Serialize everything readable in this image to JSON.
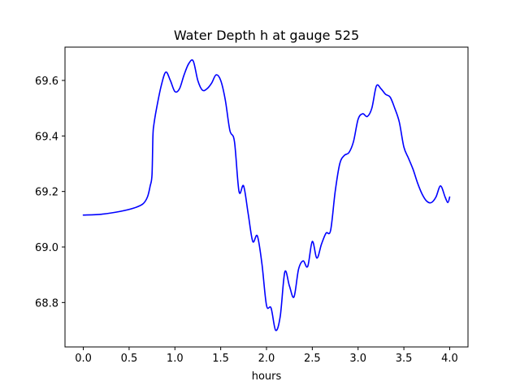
{
  "chart_data": {
    "type": "line",
    "title": "Water Depth h at gauge 525",
    "xlabel": "hours",
    "ylabel": "",
    "xlim": [
      -0.2,
      4.2
    ],
    "ylim": [
      68.64,
      69.72
    ],
    "xticks": [
      0.0,
      0.5,
      1.0,
      1.5,
      2.0,
      2.5,
      3.0,
      3.5,
      4.0
    ],
    "xtick_labels": [
      "0.0",
      "0.5",
      "1.0",
      "1.5",
      "2.0",
      "2.5",
      "3.0",
      "3.5",
      "4.0"
    ],
    "yticks": [
      68.8,
      69.0,
      69.2,
      69.4,
      69.6
    ],
    "ytick_labels": [
      "68.8",
      "69.0",
      "69.2",
      "69.4",
      "69.6"
    ],
    "grid": false,
    "series": [
      {
        "color": "#0000ff",
        "x": [
          0.0,
          0.2,
          0.4,
          0.55,
          0.65,
          0.7,
          0.73,
          0.75,
          0.76,
          0.77,
          0.8,
          0.85,
          0.9,
          0.95,
          1.0,
          1.05,
          1.1,
          1.15,
          1.2,
          1.25,
          1.3,
          1.35,
          1.4,
          1.45,
          1.5,
          1.55,
          1.6,
          1.65,
          1.7,
          1.75,
          1.8,
          1.85,
          1.9,
          1.95,
          2.0,
          2.05,
          2.1,
          2.15,
          2.2,
          2.25,
          2.3,
          2.35,
          2.4,
          2.45,
          2.5,
          2.55,
          2.6,
          2.65,
          2.7,
          2.75,
          2.8,
          2.85,
          2.9,
          2.95,
          3.0,
          3.05,
          3.1,
          3.15,
          3.2,
          3.25,
          3.3,
          3.35,
          3.4,
          3.45,
          3.5,
          3.55,
          3.6,
          3.65,
          3.7,
          3.75,
          3.8,
          3.85,
          3.9,
          3.95,
          3.98,
          4.0
        ],
        "y": [
          69.115,
          69.118,
          69.128,
          69.14,
          69.155,
          69.18,
          69.22,
          69.26,
          69.4,
          69.44,
          69.5,
          69.58,
          69.63,
          69.6,
          69.56,
          69.57,
          69.62,
          69.66,
          69.67,
          69.6,
          69.565,
          69.57,
          69.59,
          69.62,
          69.6,
          69.53,
          69.42,
          69.38,
          69.2,
          69.22,
          69.12,
          69.02,
          69.04,
          68.94,
          68.79,
          68.78,
          68.7,
          68.75,
          68.91,
          68.86,
          68.82,
          68.92,
          68.95,
          68.93,
          69.02,
          68.96,
          69.01,
          69.05,
          69.06,
          69.2,
          69.3,
          69.33,
          69.34,
          69.38,
          69.46,
          69.48,
          69.47,
          69.5,
          69.58,
          69.57,
          69.55,
          69.54,
          69.5,
          69.45,
          69.36,
          69.32,
          69.28,
          69.23,
          69.19,
          69.165,
          69.16,
          69.18,
          69.22,
          69.18,
          69.16,
          69.18
        ]
      }
    ]
  }
}
